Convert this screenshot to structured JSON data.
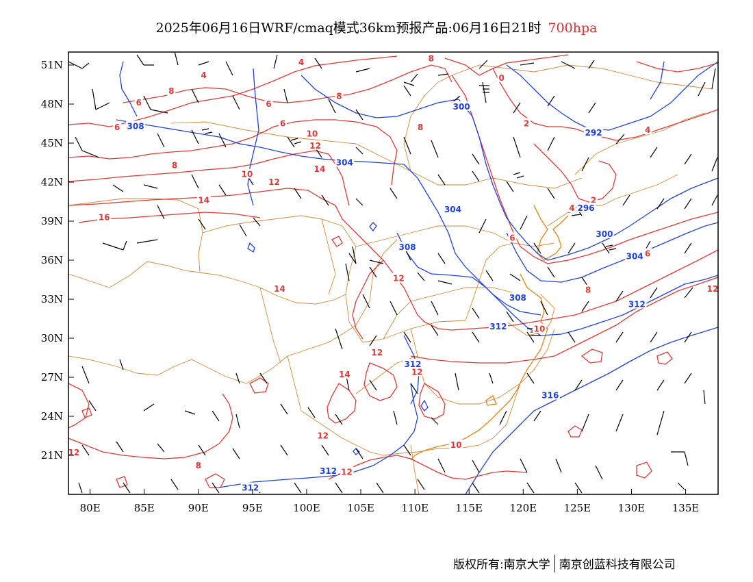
{
  "title": {
    "main": "2025年06月16日WRF/cmaq模式36km预报产品:06月16日21时",
    "level": "700hpa",
    "level_color": "#e03030"
  },
  "axes": {
    "lat_labels": [
      "51N",
      "48N",
      "45N",
      "42N",
      "39N",
      "36N",
      "33N",
      "30N",
      "27N",
      "24N",
      "21N"
    ],
    "lat_values": [
      51,
      48,
      45,
      42,
      39,
      36,
      33,
      30,
      27,
      24,
      21
    ],
    "lon_labels": [
      "80E",
      "85E",
      "90E",
      "95E",
      "100E",
      "105E",
      "110E",
      "115E",
      "120E",
      "125E",
      "130E",
      "135E"
    ],
    "lon_values": [
      80,
      85,
      90,
      95,
      100,
      105,
      110,
      115,
      120,
      125,
      130,
      135
    ],
    "lon_range": [
      78,
      138
    ],
    "lat_range": [
      18,
      52
    ]
  },
  "colors": {
    "temperature": "#e03838",
    "height": "#2040e0",
    "border": "#d08a3a",
    "wind": "#000000"
  },
  "temperature_labels": [
    {
      "text": "4",
      "lon": 90.5,
      "lat": 50.2
    },
    {
      "text": "4",
      "lon": 99.5,
      "lat": 51.2
    },
    {
      "text": "8",
      "lon": 111.5,
      "lat": 51.5
    },
    {
      "text": "0",
      "lon": 118,
      "lat": 50.0
    },
    {
      "text": "8",
      "lon": 87.5,
      "lat": 49.0
    },
    {
      "text": "6",
      "lon": 84.5,
      "lat": 48.1
    },
    {
      "text": "6",
      "lon": 96.5,
      "lat": 48.0
    },
    {
      "text": "8",
      "lon": 103,
      "lat": 48.6
    },
    {
      "text": "6",
      "lon": 97.8,
      "lat": 46.5
    },
    {
      "text": "6",
      "lon": 82.5,
      "lat": 46.2
    },
    {
      "text": "10",
      "lon": 100.5,
      "lat": 45.7
    },
    {
      "text": "8",
      "lon": 110.5,
      "lat": 46.2
    },
    {
      "text": "12",
      "lon": 100.8,
      "lat": 44.8
    },
    {
      "text": "2",
      "lon": 120.3,
      "lat": 46.5
    },
    {
      "text": "4",
      "lon": 131.5,
      "lat": 46.0
    },
    {
      "text": "8",
      "lon": 87.8,
      "lat": 43.3
    },
    {
      "text": "10",
      "lon": 94.5,
      "lat": 42.6
    },
    {
      "text": "14",
      "lon": 101.2,
      "lat": 43.0
    },
    {
      "text": "12",
      "lon": 97.0,
      "lat": 42.0
    },
    {
      "text": "14",
      "lon": 90.5,
      "lat": 40.6
    },
    {
      "text": "4",
      "lon": 124.5,
      "lat": 40.0
    },
    {
      "text": "2",
      "lon": 126.5,
      "lat": 40.6
    },
    {
      "text": "16",
      "lon": 81.3,
      "lat": 39.3
    },
    {
      "text": "6",
      "lon": 119,
      "lat": 37.7
    },
    {
      "text": "6",
      "lon": 131.5,
      "lat": 36.5
    },
    {
      "text": "14",
      "lon": 97.5,
      "lat": 33.8
    },
    {
      "text": "12",
      "lon": 108.5,
      "lat": 34.6
    },
    {
      "text": "8",
      "lon": 126,
      "lat": 33.7
    },
    {
      "text": "12",
      "lon": 137.5,
      "lat": 33.8
    },
    {
      "text": "10",
      "lon": 121.5,
      "lat": 30.7
    },
    {
      "text": "12",
      "lon": 106.5,
      "lat": 28.9
    },
    {
      "text": "12",
      "lon": 110.2,
      "lat": 27.4
    },
    {
      "text": "14",
      "lon": 103.5,
      "lat": 27.2
    },
    {
      "text": "12",
      "lon": 101.5,
      "lat": 22.5
    },
    {
      "text": "10",
      "lon": 113.8,
      "lat": 21.8
    },
    {
      "text": "12",
      "lon": 78.5,
      "lat": 21.2
    },
    {
      "text": "12",
      "lon": 103.7,
      "lat": 19.7
    },
    {
      "text": "8",
      "lon": 90.0,
      "lat": 20.2
    }
  ],
  "height_labels": [
    {
      "text": "300",
      "lon": 114.3,
      "lat": 47.8
    },
    {
      "text": "308",
      "lon": 84.2,
      "lat": 46.3
    },
    {
      "text": "304",
      "lon": 103.5,
      "lat": 43.5
    },
    {
      "text": "292",
      "lon": 126.5,
      "lat": 45.8
    },
    {
      "text": "304",
      "lon": 113.5,
      "lat": 39.9
    },
    {
      "text": "296",
      "lon": 125.8,
      "lat": 40.0
    },
    {
      "text": "300",
      "lon": 127.5,
      "lat": 38.0
    },
    {
      "text": "308",
      "lon": 109.3,
      "lat": 37.0
    },
    {
      "text": "304",
      "lon": 130.3,
      "lat": 36.3
    },
    {
      "text": "308",
      "lon": 119.5,
      "lat": 33.1
    },
    {
      "text": "312",
      "lon": 130.5,
      "lat": 32.6
    },
    {
      "text": "312",
      "lon": 117.7,
      "lat": 30.9
    },
    {
      "text": "312",
      "lon": 109.8,
      "lat": 28.0
    },
    {
      "text": "316",
      "lon": 122.5,
      "lat": 25.6
    },
    {
      "text": "312",
      "lon": 102.0,
      "lat": 19.8
    },
    {
      "text": "312",
      "lon": 94.8,
      "lat": 18.5
    }
  ],
  "footer": {
    "left": "版权所有:南京大学",
    "right": "南京创蓝科技有限公司"
  }
}
